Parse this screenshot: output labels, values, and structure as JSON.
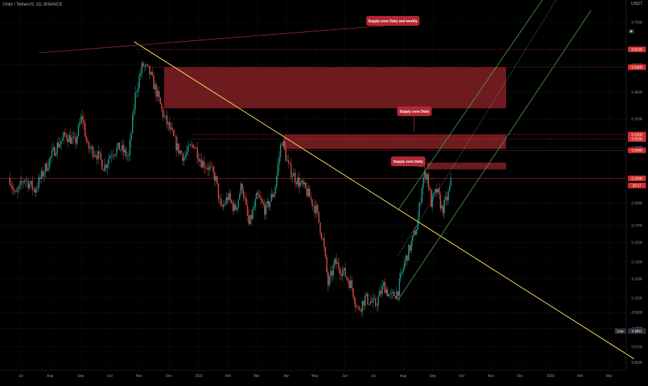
{
  "header": {
    "symbol": "Chiliz / TetherUS, 1D, BINANCE",
    "currency": "USDT"
  },
  "legend_icon": "camera-icon",
  "colors": {
    "background": "#000000",
    "up": "#26a69a",
    "down": "#ef5350",
    "trendline": "#f7d65c",
    "channel": "#4caf50",
    "zone": "#7a1e22",
    "callout": "#b22833",
    "tag": "#d32f2f",
    "low_tag": "#2a2e39"
  },
  "chart_data": {
    "type": "candlestick",
    "x_axis": {
      "ticks": [
        "Jul",
        "Aug",
        "Sep",
        "Oct",
        "Nov",
        "Dec",
        "2022",
        "Feb",
        "Mar",
        "Apr",
        "May",
        "Jun",
        "Jul",
        "Aug",
        "Sep",
        "Oct",
        "Nov",
        "Dec",
        "2023",
        "Feb",
        "Mar"
      ]
    },
    "y_axis": {
      "scale": "log",
      "ticks": [
        "0.7500",
        "0.5500",
        "0.4500",
        "0.3700",
        "0.3000",
        "0.2400",
        "0.2000",
        "0.1700",
        "0.1500",
        "0.1300",
        "0.1150",
        "0.1000",
        "0.0900",
        "0.0800",
        "0.0700",
        "0.0625"
      ],
      "ylim": [
        0.062,
        0.82
      ]
    },
    "price_tags": [
      {
        "label": "0.6150",
        "value": 0.615
      },
      {
        "label": "0.5400",
        "value": 0.54
      },
      {
        "label": "0.3300",
        "value": 0.33
      },
      {
        "label": "0.3195",
        "value": 0.3195
      },
      {
        "label": "0.2940",
        "value": 0.294
      },
      {
        "label": "0.2396",
        "value": 0.2396
      },
      {
        "label": "32:17",
        "value": 0.2275
      }
    ],
    "low_tag": {
      "label": "Low",
      "value": "0.0811"
    },
    "zones": [
      {
        "low": 0.4,
        "high": 0.54,
        "label": "Supply zone Daily and weekly"
      },
      {
        "low": 0.297,
        "high": 0.33,
        "label": "Supply zone Daily"
      },
      {
        "low": 0.256,
        "high": 0.269,
        "label": "Supply zone Daily"
      }
    ],
    "series_close_approx": [
      {
        "period": "Jul",
        "close": 0.24
      },
      {
        "period": "Aug",
        "close": 0.3
      },
      {
        "period": "Sep",
        "close": 0.33
      },
      {
        "period": "Oct",
        "close": 0.28
      },
      {
        "period": "Nov",
        "close": 0.55
      },
      {
        "period": "Dec",
        "close": 0.3
      },
      {
        "period": "2022",
        "close": 0.27
      },
      {
        "period": "Feb",
        "close": 0.22
      },
      {
        "period": "Mar",
        "close": 0.2
      },
      {
        "period": "Apr",
        "close": 0.3
      },
      {
        "period": "May",
        "close": 0.22
      },
      {
        "period": "Jun",
        "close": 0.12
      },
      {
        "period": "Jul",
        "close": 0.1
      },
      {
        "period": "Aug",
        "close": 0.14
      },
      {
        "period": "Sep",
        "close": 0.24
      },
      {
        "period": "Sep",
        "close": 0.2
      },
      {
        "period": "Sep",
        "close": 0.2396
      }
    ]
  }
}
